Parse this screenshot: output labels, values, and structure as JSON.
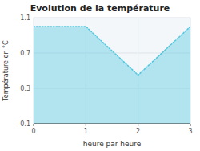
{
  "chart_data": {
    "type": "area",
    "title": "Evolution de la température",
    "x_label": "heure par heure",
    "y_label": "Température en °C",
    "x": [
      0,
      1,
      2,
      3
    ],
    "values": [
      1.0,
      1.0,
      0.45,
      1.0
    ],
    "xlim": [
      0,
      3
    ],
    "ylim": [
      -0.1,
      1.1
    ],
    "xticks": [
      0,
      1,
      2,
      3
    ],
    "yticks": [
      -0.1,
      0.3,
      0.7,
      1.1
    ],
    "color": "#50c8e0",
    "line_style": "dotted",
    "grid": true
  }
}
